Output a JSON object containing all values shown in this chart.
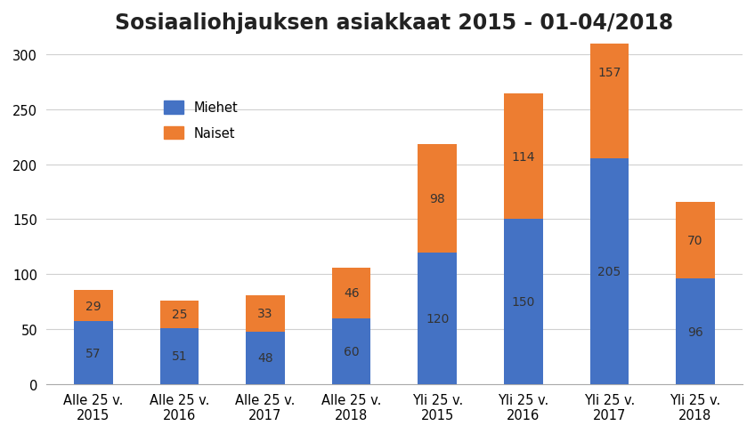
{
  "title": "Sosiaaliohjauksen asiakkaat 2015 - 01-04/2018",
  "categories": [
    "Alle 25 v.\n2015",
    "Alle 25 v.\n2016",
    "Alle 25 v.\n2017",
    "Alle 25 v.\n2018",
    "Yli 25 v.\n2015",
    "Yli 25 v.\n2016",
    "Yli 25 v.\n2017",
    "Yli 25 v.\n2018"
  ],
  "miehet": [
    57,
    51,
    48,
    60,
    120,
    150,
    205,
    96
  ],
  "naiset": [
    29,
    25,
    33,
    46,
    98,
    114,
    157,
    70
  ],
  "miehet_color": "#4472C4",
  "naiset_color": "#ED7D31",
  "legend_miehet": "Miehet",
  "legend_naiset": "Naiset",
  "ylim": [
    0,
    310
  ],
  "yticks": [
    0,
    50,
    100,
    150,
    200,
    250,
    300
  ],
  "background_color": "#FFFFFF",
  "grid_color": "#D0D0D0",
  "title_fontsize": 17,
  "label_fontsize": 10.5,
  "bar_label_fontsize": 10,
  "bar_label_color": "#333333",
  "bar_width": 0.45
}
